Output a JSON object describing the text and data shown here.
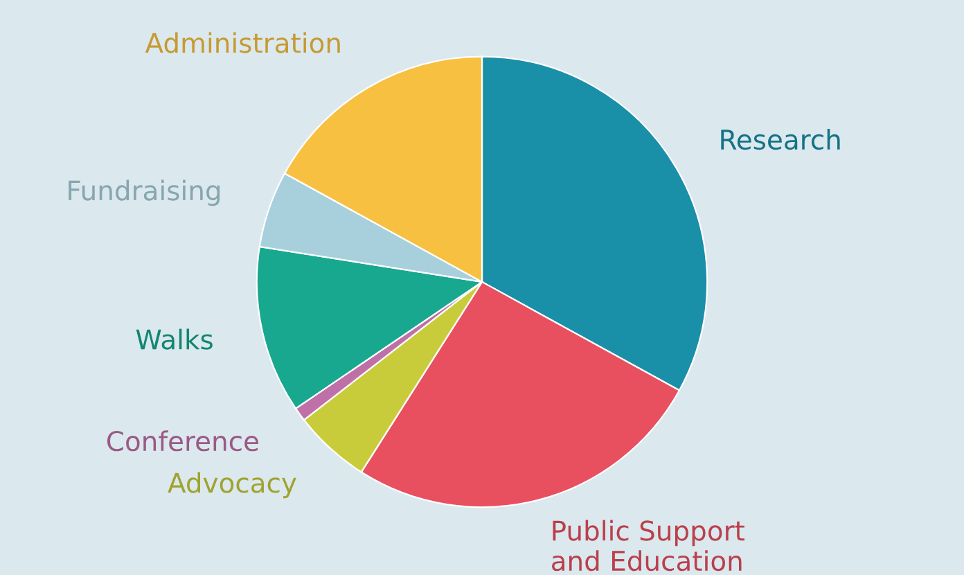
{
  "chart_data": {
    "type": "pie",
    "categories": [
      "Research",
      "Public Support\nand Education",
      "Advocacy",
      "Conference",
      "Walks",
      "Fundraising",
      "Administration"
    ],
    "values": [
      33,
      26,
      5.5,
      1,
      12,
      5.5,
      17
    ],
    "colors": [
      "#1a8fa8",
      "#e8505f",
      "#c8cc3a",
      "#c070a8",
      "#18a890",
      "#a8d0dc",
      "#f8c040"
    ]
  }
}
